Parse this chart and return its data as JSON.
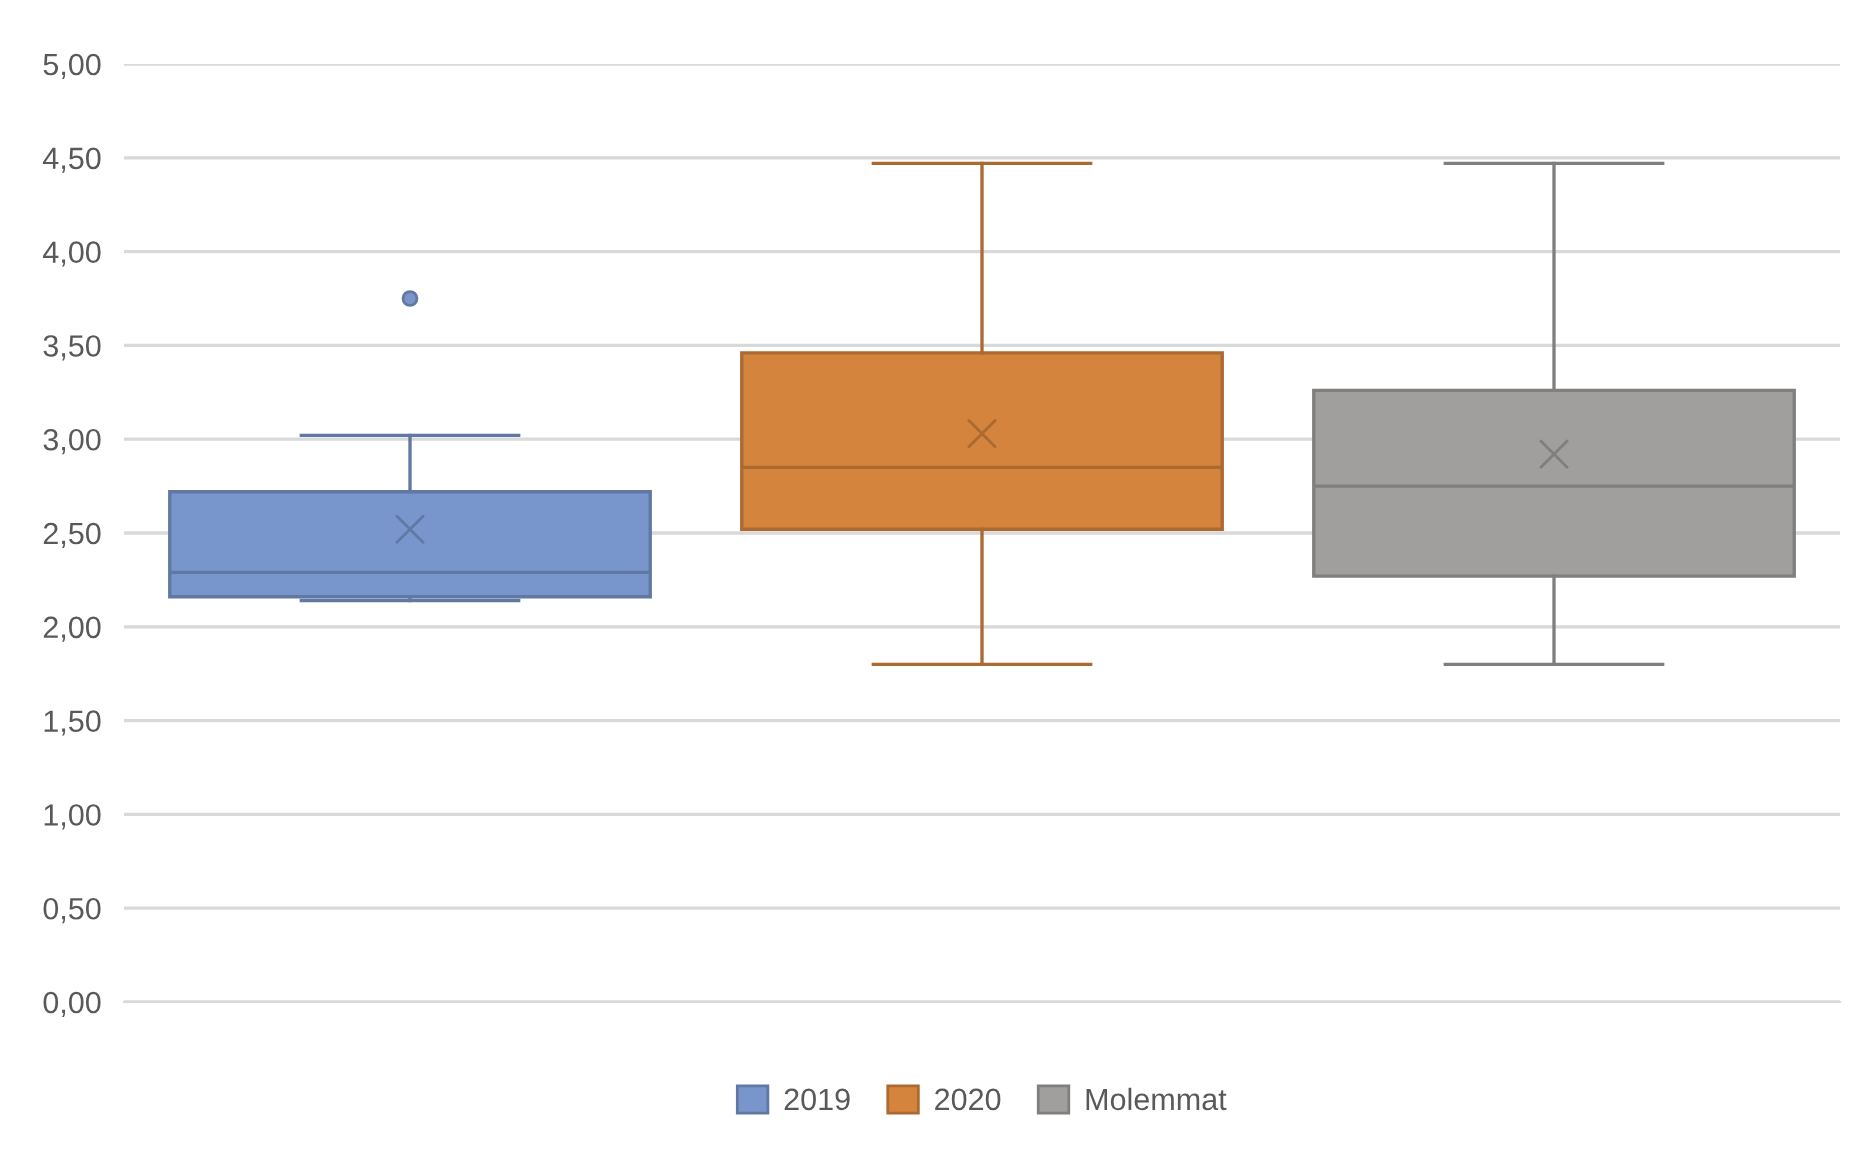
{
  "chart_data": {
    "type": "box",
    "categories": [
      null
    ],
    "series": [
      {
        "name": "2019",
        "color": "#7896cb",
        "boxes": [
          {
            "low": 2.14,
            "q1": 2.16,
            "median": 2.29,
            "q3": 2.72,
            "high": 3.02,
            "mean": 2.52,
            "outliers": [
              3.75
            ]
          }
        ]
      },
      {
        "name": "2020",
        "color": "#d4843d",
        "boxes": [
          {
            "low": 1.8,
            "q1": 2.52,
            "median": 2.85,
            "q3": 3.46,
            "high": 4.47,
            "mean": 3.03
          }
        ]
      },
      {
        "name": "Molemmat",
        "color": "#a09f9e",
        "boxes": [
          {
            "low": 1.8,
            "q1": 2.27,
            "median": 2.75,
            "q3": 3.26,
            "high": 4.47,
            "mean": 2.92
          }
        ]
      }
    ],
    "ylim": [
      0,
      5
    ],
    "yticks": [
      {
        "value": 0,
        "label": "0,00"
      },
      {
        "value": 0.5,
        "label": "0,50"
      },
      {
        "value": 1,
        "label": "1,00"
      },
      {
        "value": 1.5,
        "label": "1,50"
      },
      {
        "value": 2,
        "label": "2,00"
      },
      {
        "value": 2.5,
        "label": "2,50"
      },
      {
        "value": 3,
        "label": "3,00"
      },
      {
        "value": 3.5,
        "label": "3,50"
      },
      {
        "value": 4,
        "label": "4,00"
      },
      {
        "value": 4.5,
        "label": "4,50"
      },
      {
        "value": 5,
        "label": "5,00"
      }
    ],
    "grid": "y",
    "legend": "bottom"
  }
}
